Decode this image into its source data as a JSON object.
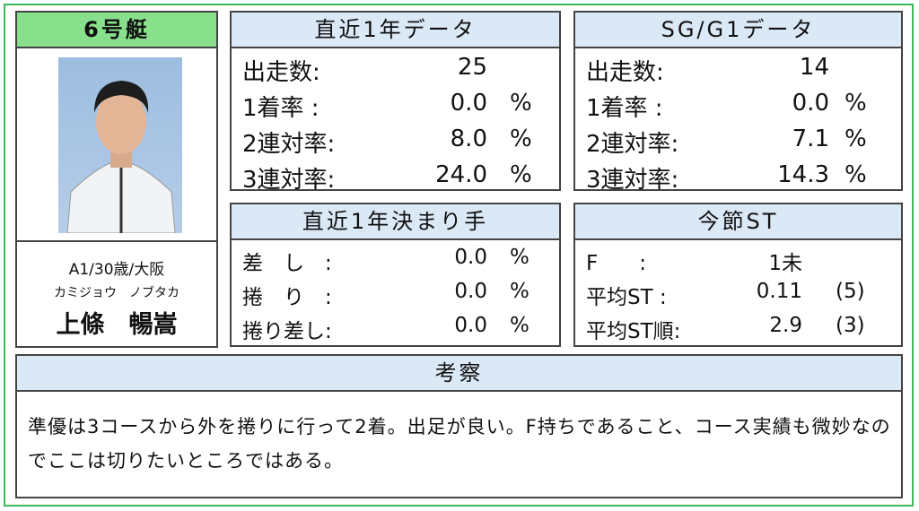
{
  "boat": {
    "title": "6号艇",
    "profile": "A1/30歳/大阪",
    "kana": "カミジョウ　ノブタカ",
    "name": "上條　暢嵩"
  },
  "year": {
    "title": "直近1年データ",
    "rows": [
      {
        "label": "出走数:",
        "value": "25",
        "unit": ""
      },
      {
        "label": "1着率 :",
        "value": "0.0",
        "unit": "%"
      },
      {
        "label": "2連対率:",
        "value": "8.0",
        "unit": "%"
      },
      {
        "label": "3連対率:",
        "value": "24.0",
        "unit": "%"
      }
    ]
  },
  "sg": {
    "title": "SG/G1データ",
    "rows": [
      {
        "label": "出走数:",
        "value": "14",
        "unit": ""
      },
      {
        "label": "1着率 :",
        "value": "0.0",
        "unit": "%"
      },
      {
        "label": "2連対率:",
        "value": "7.1",
        "unit": "%"
      },
      {
        "label": "3連対率:",
        "value": "14.3",
        "unit": "%"
      }
    ]
  },
  "kimarite": {
    "title": "直近1年決まり手",
    "rows": [
      {
        "label": "差　し　:",
        "value": "0.0",
        "unit": "%"
      },
      {
        "label": "捲　り　:",
        "value": "0.0",
        "unit": "%"
      },
      {
        "label": "捲り差し:",
        "value": "0.0",
        "unit": "%"
      }
    ]
  },
  "st": {
    "title": "今節ST",
    "rows": [
      {
        "label": "F　　:",
        "value": "1未",
        "unit": ""
      },
      {
        "label": "平均ST :",
        "value": "0.11",
        "unit": "(5)"
      },
      {
        "label": "平均ST順:",
        "value": "2.9",
        "unit": "(3)"
      }
    ]
  },
  "comment": {
    "title": "考察",
    "text": "準優は3コースから外を捲りに行って2着。出足が良い。F持ちであること、コース実績も微妙なのでここは切りたいところではある。"
  },
  "colors": {
    "boat_header": "#88e08c",
    "panel_header": "#dbe8f6",
    "outer_border": "#3cb85a"
  }
}
